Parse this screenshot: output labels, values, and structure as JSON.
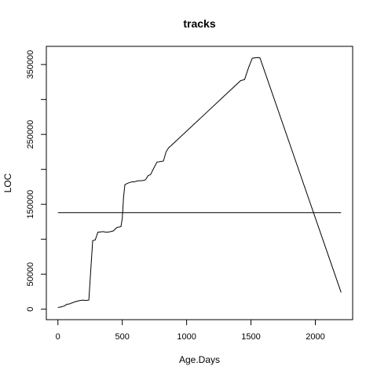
{
  "chart_data": {
    "type": "line",
    "title": "tracks",
    "xlabel": "Age.Days",
    "ylabel": "LOC",
    "xlim": [
      -90,
      2290
    ],
    "ylim": [
      -15000,
      376000
    ],
    "x_ticks": [
      0,
      500,
      1000,
      1500,
      2000
    ],
    "x_tick_labels": [
      "0",
      "500",
      "1000",
      "1500",
      "2000"
    ],
    "y_ticks": [
      0,
      50000,
      150000,
      250000,
      350000
    ],
    "y_tick_labels": [
      "0",
      "50000",
      "150000",
      "250000",
      "350000"
    ],
    "y_minor_ticks": [
      100000,
      200000,
      300000
    ],
    "grid": false,
    "series": [
      {
        "x": [
          0,
          20,
          50,
          70,
          90,
          110,
          140,
          160,
          190,
          220,
          240,
          270,
          290,
          310,
          350,
          380,
          410,
          430,
          460,
          490,
          500,
          510,
          520,
          540,
          570,
          600,
          620,
          660,
          680,
          700,
          720,
          740,
          770,
          790,
          820,
          840,
          860,
          880,
          1420,
          1450,
          1480,
          1510,
          1550,
          1570,
          2200
        ],
        "y": [
          2500,
          3000,
          4500,
          7000,
          7500,
          9000,
          11000,
          12000,
          13000,
          12500,
          13000,
          98000,
          99000,
          110000,
          111000,
          110000,
          111000,
          112000,
          117000,
          118000,
          130000,
          160000,
          178000,
          180000,
          182000,
          182500,
          183500,
          184000,
          185000,
          191000,
          192500,
          200000,
          210500,
          211000,
          212000,
          225000,
          231000,
          234000,
          327000,
          328500,
          345000,
          359000,
          360000,
          359500,
          24000
        ]
      },
      {
        "x": [
          0,
          2200
        ],
        "y": [
          138000,
          138000
        ]
      }
    ]
  }
}
